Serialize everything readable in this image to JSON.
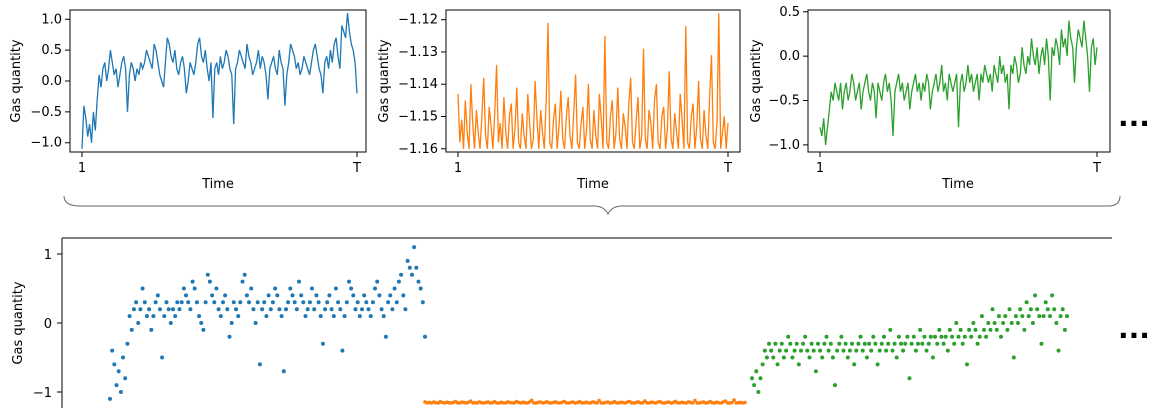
{
  "ellipsis": "...",
  "colors": {
    "c0": "#1f77b4",
    "c1": "#ff7f0e",
    "c2": "#2ca02c"
  },
  "chart_data": [
    {
      "type": "line",
      "color": "#1f77b4",
      "xlabel": "Time",
      "ylabel": "Gas quantity",
      "xtick_labels": [
        "1",
        "T"
      ],
      "yticks": [
        -1.0,
        -0.5,
        0.0,
        0.5,
        1.0
      ],
      "ytick_labels": [
        "−1.0",
        "−0.5",
        "0.0",
        "0.5",
        "1.0"
      ],
      "ylim": [
        -1.15,
        1.15
      ],
      "values": [
        -1.1,
        -0.4,
        -0.6,
        -0.9,
        -0.7,
        -1.0,
        -0.5,
        -0.8,
        -0.3,
        0.1,
        -0.1,
        0.2,
        0.3,
        0.0,
        0.2,
        0.5,
        0.3,
        0.1,
        0.2,
        -0.1,
        0.1,
        0.3,
        0.4,
        0.2,
        -0.5,
        0.1,
        0.3,
        0.2,
        0.0,
        0.2,
        0.1,
        0.3,
        0.2,
        0.3,
        0.5,
        0.4,
        0.3,
        0.2,
        0.6,
        0.5,
        0.3,
        0.1,
        0.0,
        -0.1,
        0.3,
        0.7,
        0.6,
        0.4,
        0.3,
        0.5,
        0.2,
        0.1,
        0.3,
        0.4,
        0.2,
        -0.2,
        0.0,
        0.3,
        0.2,
        0.1,
        0.3,
        0.6,
        0.7,
        0.4,
        0.3,
        0.5,
        0.2,
        0.0,
        0.3,
        -0.6,
        0.2,
        0.3,
        0.1,
        0.4,
        0.2,
        0.3,
        0.5,
        0.4,
        0.2,
        0.1,
        -0.7,
        0.2,
        0.3,
        0.5,
        0.4,
        0.3,
        0.2,
        0.6,
        0.4,
        0.3,
        0.1,
        0.2,
        0.3,
        0.5,
        0.2,
        0.4,
        0.3,
        0.1,
        -0.3,
        0.2,
        0.3,
        0.4,
        0.2,
        0.1,
        0.5,
        0.3,
        0.2,
        -0.4,
        0.1,
        0.3,
        0.6,
        0.5,
        0.4,
        0.2,
        0.3,
        0.1,
        0.2,
        0.4,
        0.3,
        0.2,
        0.1,
        0.3,
        0.5,
        0.6,
        0.4,
        0.2,
        0.1,
        -0.2,
        0.3,
        0.4,
        0.2,
        0.5,
        0.3,
        0.6,
        0.7,
        0.4,
        0.2,
        0.9,
        0.8,
        0.7,
        1.1,
        0.8,
        0.6,
        0.5,
        0.3,
        -0.2
      ]
    },
    {
      "type": "line",
      "color": "#ff7f0e",
      "xlabel": "Time",
      "ylabel": "Gas quantity",
      "xtick_labels": [
        "1",
        "T"
      ],
      "yticks": [
        -1.16,
        -1.15,
        -1.14,
        -1.13,
        -1.12
      ],
      "ytick_labels": [
        "−1.16",
        "−1.15",
        "−1.14",
        "−1.13",
        "−1.12"
      ],
      "ylim": [
        -1.161,
        -1.117
      ],
      "values": [
        -1.143,
        -1.158,
        -1.151,
        -1.16,
        -1.145,
        -1.155,
        -1.16,
        -1.14,
        -1.152,
        -1.16,
        -1.148,
        -1.155,
        -1.16,
        -1.15,
        -1.138,
        -1.156,
        -1.16,
        -1.147,
        -1.153,
        -1.16,
        -1.149,
        -1.134,
        -1.158,
        -1.152,
        -1.16,
        -1.144,
        -1.155,
        -1.16,
        -1.15,
        -1.146,
        -1.16,
        -1.154,
        -1.141,
        -1.158,
        -1.16,
        -1.149,
        -1.156,
        -1.16,
        -1.143,
        -1.152,
        -1.16,
        -1.157,
        -1.139,
        -1.151,
        -1.16,
        -1.148,
        -1.155,
        -1.16,
        -1.145,
        -1.121,
        -1.158,
        -1.16,
        -1.151,
        -1.146,
        -1.16,
        -1.153,
        -1.142,
        -1.157,
        -1.16,
        -1.15,
        -1.144,
        -1.156,
        -1.16,
        -1.149,
        -1.137,
        -1.158,
        -1.16,
        -1.152,
        -1.147,
        -1.16,
        -1.154,
        -1.14,
        -1.157,
        -1.16,
        -1.148,
        -1.156,
        -1.16,
        -1.143,
        -1.151,
        -1.16,
        -1.125,
        -1.158,
        -1.16,
        -1.15,
        -1.145,
        -1.16,
        -1.155,
        -1.141,
        -1.157,
        -1.16,
        -1.149,
        -1.153,
        -1.16,
        -1.146,
        -1.138,
        -1.158,
        -1.16,
        -1.151,
        -1.144,
        -1.16,
        -1.156,
        -1.129,
        -1.157,
        -1.16,
        -1.148,
        -1.152,
        -1.16,
        -1.145,
        -1.14,
        -1.158,
        -1.16,
        -1.15,
        -1.147,
        -1.16,
        -1.154,
        -1.136,
        -1.157,
        -1.16,
        -1.149,
        -1.155,
        -1.16,
        -1.143,
        -1.151,
        -1.16,
        -1.122,
        -1.158,
        -1.16,
        -1.15,
        -1.146,
        -1.16,
        -1.153,
        -1.139,
        -1.157,
        -1.16,
        -1.148,
        -1.156,
        -1.16,
        -1.144,
        -1.131,
        -1.158,
        -1.16,
        -1.152,
        -1.118,
        -1.16,
        -1.155,
        -1.15,
        -1.16,
        -1.152
      ]
    },
    {
      "type": "line",
      "color": "#2ca02c",
      "xlabel": "Time",
      "ylabel": "Gas quantity",
      "xtick_labels": [
        "1",
        "T"
      ],
      "yticks": [
        -1.0,
        -0.5,
        0.0,
        0.5
      ],
      "ytick_labels": [
        "−1.0",
        "−0.5",
        "0.0",
        "0.5"
      ],
      "ylim": [
        -1.08,
        0.52
      ],
      "values": [
        -0.8,
        -0.9,
        -0.7,
        -1.0,
        -0.8,
        -0.6,
        -0.4,
        -0.5,
        -0.3,
        -0.4,
        -0.5,
        -0.3,
        -0.6,
        -0.4,
        -0.3,
        -0.5,
        -0.4,
        -0.2,
        -0.3,
        -0.5,
        -0.4,
        -0.3,
        -0.6,
        -0.4,
        -0.3,
        -0.2,
        -0.4,
        -0.5,
        -0.3,
        -0.4,
        -0.7,
        -0.3,
        -0.4,
        -0.5,
        -0.3,
        -0.2,
        -0.4,
        -0.3,
        -0.5,
        -0.9,
        -0.4,
        -0.3,
        -0.2,
        -0.4,
        -0.3,
        -0.5,
        -0.4,
        -0.3,
        -0.6,
        -0.4,
        -0.3,
        -0.2,
        -0.4,
        -0.3,
        -0.5,
        -0.3,
        -0.4,
        -0.2,
        -0.3,
        -0.6,
        -0.4,
        -0.3,
        -0.2,
        -0.4,
        -0.3,
        -0.1,
        -0.4,
        -0.3,
        -0.5,
        -0.2,
        -0.3,
        -0.4,
        -0.3,
        -0.2,
        -0.8,
        -0.3,
        -0.2,
        -0.4,
        -0.3,
        -0.1,
        -0.3,
        -0.2,
        -0.4,
        -0.3,
        -0.2,
        -0.5,
        -0.2,
        -0.3,
        -0.1,
        -0.2,
        -0.3,
        -0.2,
        -0.4,
        -0.1,
        -0.2,
        -0.3,
        0.0,
        -0.2,
        -0.1,
        -0.3,
        -0.2,
        -0.6,
        -0.1,
        -0.2,
        0.0,
        -0.1,
        -0.3,
        -0.2,
        0.1,
        -0.1,
        -0.2,
        0.0,
        -0.1,
        0.2,
        0.0,
        -0.1,
        0.1,
        -0.2,
        0.0,
        0.1,
        -0.1,
        0.2,
        0.0,
        -0.5,
        0.1,
        0.0,
        0.2,
        0.1,
        -0.1,
        0.3,
        0.1,
        0.2,
        0.0,
        0.4,
        0.2,
        0.1,
        -0.3,
        0.1,
        0.3,
        0.2,
        0.1,
        0.4,
        0.2,
        0.0,
        -0.4,
        0.1,
        0.2,
        -0.1,
        0.1
      ]
    },
    {
      "type": "scatter",
      "ylabel": "Gas quantity",
      "yticks": [
        -1,
        0,
        1
      ],
      "ytick_labels": [
        "−1",
        "0",
        "1"
      ],
      "ylim": [
        -1.15,
        1.2
      ],
      "note_series_order": [
        "c0",
        "c1",
        "c2"
      ]
    }
  ]
}
